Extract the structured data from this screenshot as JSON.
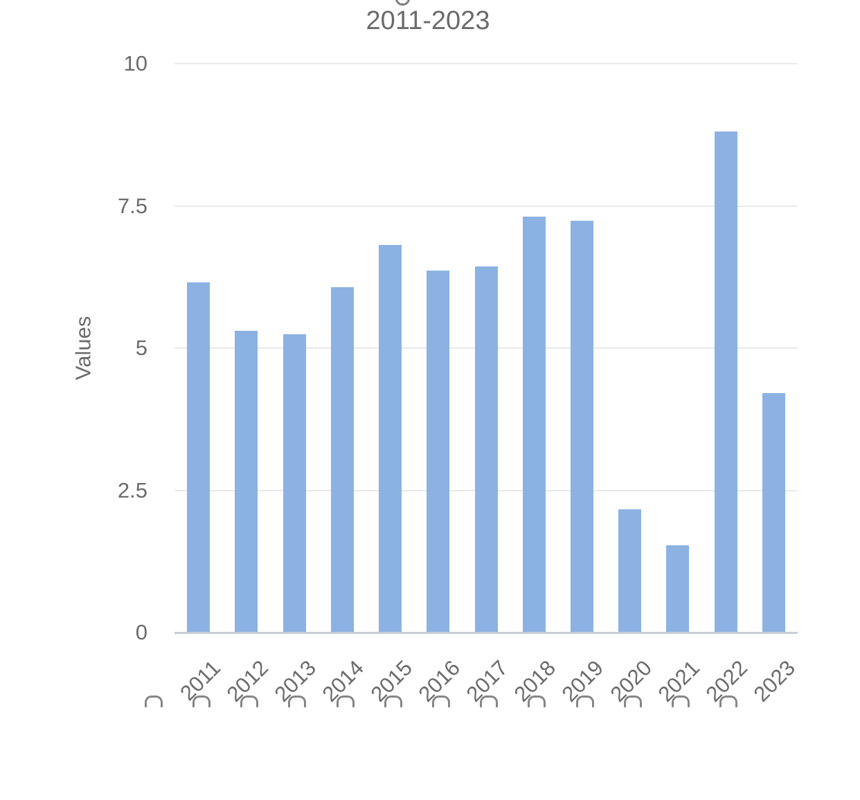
{
  "title": {
    "visible_line": "2011-2023",
    "note_first_line_cut_off": true
  },
  "chart_data": {
    "type": "bar",
    "title": "2011-2023",
    "categories": [
      "2011",
      "2012",
      "2013",
      "2014",
      "2015",
      "2016",
      "2017",
      "2018",
      "2019",
      "2020",
      "2021",
      "2022",
      "2023"
    ],
    "values": [
      6.15,
      5.3,
      5.24,
      6.07,
      6.81,
      6.36,
      6.44,
      7.31,
      7.24,
      2.17,
      1.53,
      8.81,
      4.21
    ],
    "xlabel": "",
    "ylabel": "Values",
    "ylim": [
      0,
      10
    ],
    "yticks": [
      0,
      2.5,
      5,
      7.5,
      10
    ],
    "ytick_labels": [
      "0",
      "2.5",
      "5",
      "7.5",
      "10"
    ],
    "grid": true,
    "legend": "none",
    "bar_color": "#8bb2e2",
    "grid_color": "#e9e9e9",
    "baseline_color": "#c9cdd7",
    "text_color": "#6b6b6b"
  }
}
